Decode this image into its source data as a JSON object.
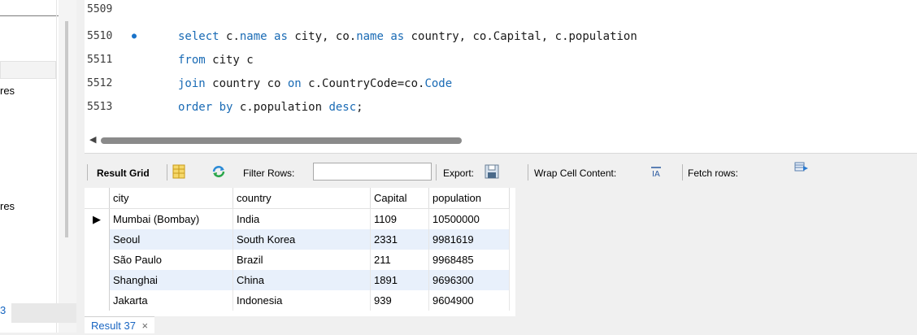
{
  "sidebar": {
    "label_1": "res",
    "label_2": "res",
    "blue_char": "3"
  },
  "editor": {
    "lines": [
      {
        "num": "5509",
        "active": false,
        "segments": []
      },
      {
        "num": "5510",
        "active": true,
        "segments": [
          {
            "t": "select ",
            "kw": true
          },
          {
            "t": "c.",
            "kw": false
          },
          {
            "t": "name",
            "kw": true
          },
          {
            "t": " ",
            "kw": false
          },
          {
            "t": "as",
            "kw": true
          },
          {
            "t": " city, co.",
            "kw": false
          },
          {
            "t": "name",
            "kw": true
          },
          {
            "t": " ",
            "kw": false
          },
          {
            "t": "as",
            "kw": true
          },
          {
            "t": " country, co.Capital, c.population",
            "kw": false
          }
        ]
      },
      {
        "num": "5511",
        "active": false,
        "segments": [
          {
            "t": "from",
            "kw": true
          },
          {
            "t": " city c",
            "kw": false
          }
        ]
      },
      {
        "num": "5512",
        "active": false,
        "segments": [
          {
            "t": "join",
            "kw": true
          },
          {
            "t": " country co ",
            "kw": false
          },
          {
            "t": "on",
            "kw": true
          },
          {
            "t": " c.CountryCode=co.",
            "kw": false
          },
          {
            "t": "Code",
            "kw": true
          }
        ]
      },
      {
        "num": "5513",
        "active": false,
        "segments": [
          {
            "t": "order by",
            "kw": true
          },
          {
            "t": " c.population ",
            "kw": false
          },
          {
            "t": "desc",
            "kw": true
          },
          {
            "t": ";",
            "kw": false
          }
        ]
      }
    ]
  },
  "toolbar": {
    "result_grid": "Result Grid",
    "filter_rows": "Filter Rows:",
    "export": "Export:",
    "wrap_cell": "Wrap Cell Content:",
    "fetch_rows": "Fetch rows:"
  },
  "grid": {
    "columns": [
      "city",
      "country",
      "Capital",
      "population"
    ],
    "rows": [
      [
        "Mumbai (Bombay)",
        "India",
        "1109",
        "10500000"
      ],
      [
        "Seoul",
        "South Korea",
        "2331",
        "9981619"
      ],
      [
        "São Paulo",
        "Brazil",
        "211",
        "9968485"
      ],
      [
        "Shanghai",
        "China",
        "1891",
        "9696300"
      ],
      [
        "Jakarta",
        "Indonesia",
        "939",
        "9604900"
      ]
    ]
  },
  "tabs": {
    "result_tab": "Result 37",
    "close": "×"
  },
  "colors": {
    "keyword": "#1a6bb5",
    "row_alt": "#e8f0fb",
    "tab_text": "#1a66c2"
  }
}
